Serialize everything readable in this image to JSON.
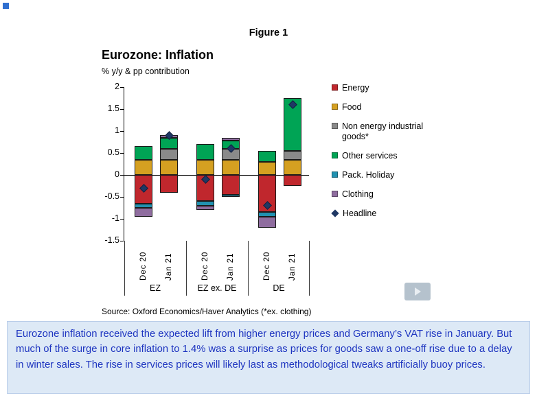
{
  "page": {
    "figure_label": "Figure 1",
    "source": "Source: Oxford Economics/Haver Analytics (*ex. clothing)",
    "caption": "Eurozone inflation received the expected lift from higher energy prices and Germany’s VAT rise in January. But much of the surge in core inflation to 1.4% was a surprise as prices for goods saw a one-off rise due to a delay in winter sales. The rise in services prices will likely last as methodological tweaks artificially buoy prices."
  },
  "chart_data": {
    "type": "bar",
    "stacked": true,
    "title": "Eurozone: Inflation",
    "subtitle": "% y/y & pp contribution",
    "categories": [
      "Dec 20",
      "Jan 21",
      "Dec 20",
      "Jan 21",
      "Dec 20",
      "Jan 21"
    ],
    "groups": [
      "EZ",
      "EZ ex. DE",
      "DE"
    ],
    "ylim": [
      -1.5,
      2
    ],
    "yticks": [
      2,
      1.5,
      1,
      0.5,
      0,
      -0.5,
      -1,
      -1.5
    ],
    "grid": false,
    "legend_position": "right",
    "series": [
      {
        "name": "Energy",
        "color": "#c0272d",
        "values": [
          -0.65,
          -0.4,
          -0.6,
          -0.45,
          -0.85,
          -0.25
        ]
      },
      {
        "name": "Food",
        "color": "#d5a021",
        "values": [
          0.35,
          0.35,
          0.35,
          0.35,
          0.3,
          0.35
        ]
      },
      {
        "name": "Non energy industrial goods*",
        "color": "#8a8a8a",
        "values": [
          0,
          0.25,
          0,
          0.25,
          0,
          0.2
        ]
      },
      {
        "name": "Other services",
        "color": "#00a455",
        "values": [
          0.3,
          0.25,
          0.35,
          0.18,
          0.25,
          1.2
        ]
      },
      {
        "name": "Pack. Holiday",
        "color": "#2191b0",
        "values": [
          -0.1,
          0,
          -0.1,
          -0.05,
          -0.1,
          0
        ]
      },
      {
        "name": "Clothing",
        "color": "#8f6d9f",
        "values": [
          -0.2,
          0.05,
          -0.1,
          0.06,
          -0.25,
          0
        ]
      }
    ],
    "headline": {
      "name": "Headline",
      "color": "#1f3864",
      "values": [
        -0.3,
        0.9,
        -0.1,
        0.6,
        -0.7,
        1.6
      ]
    }
  }
}
